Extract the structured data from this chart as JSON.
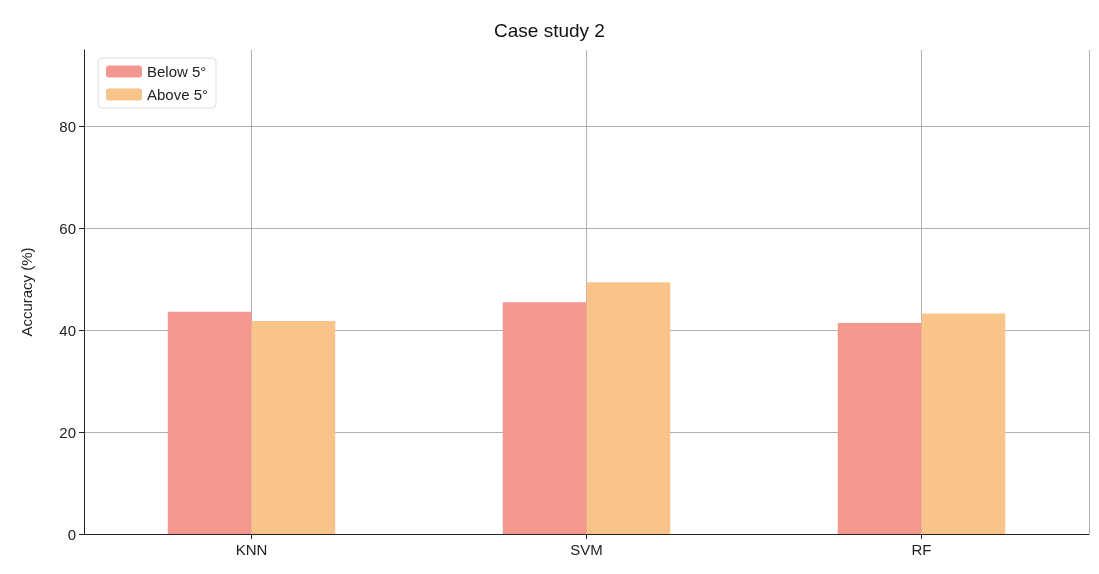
{
  "chart_data": {
    "type": "bar",
    "title": "Case study 2",
    "ylabel": "Accuracy (%)",
    "categories": [
      "KNN",
      "SVM",
      "RF"
    ],
    "series": [
      {
        "name": "Below 5°",
        "color": "#f4978e",
        "values": [
          43.6,
          45.5,
          41.4
        ]
      },
      {
        "name": "Above 5°",
        "color": "#f9c48a",
        "values": [
          41.8,
          49.4,
          43.3
        ]
      }
    ],
    "ylim": [
      0,
      95
    ],
    "yticks": [
      0,
      20,
      40,
      60,
      80
    ],
    "grid": true,
    "legend": "top left"
  }
}
